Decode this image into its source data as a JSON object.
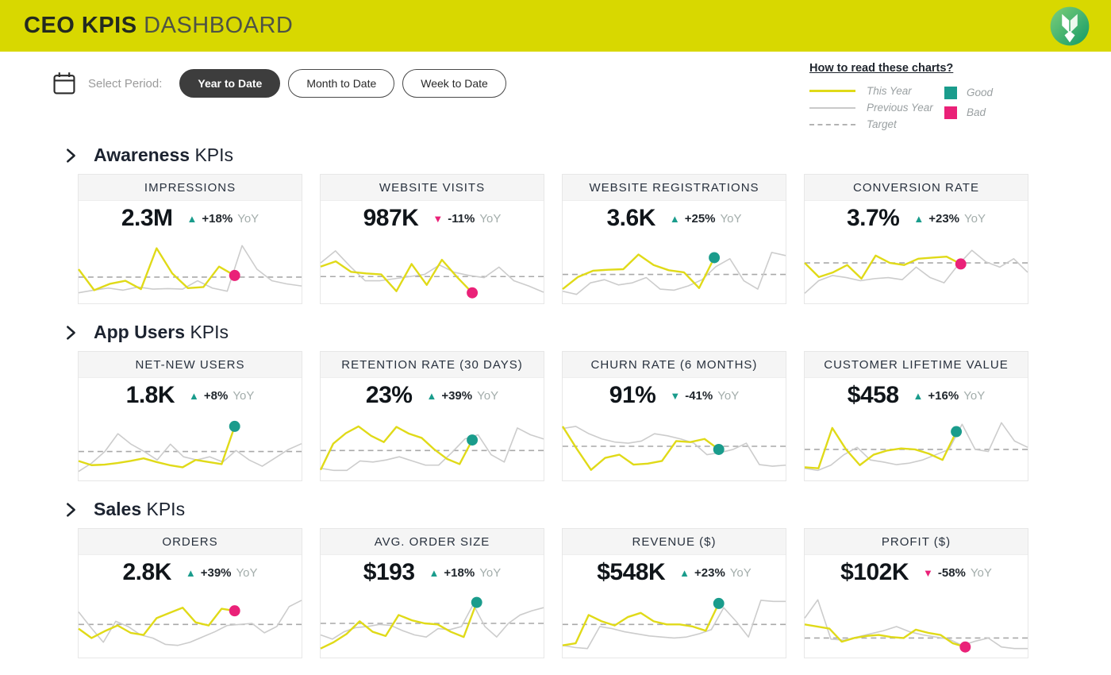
{
  "header": {
    "title_bold": "CEO KPIS",
    "title_light": "DASHBOARD"
  },
  "controls": {
    "label": "Select Period:",
    "periods": [
      {
        "label": "Year to Date",
        "selected": true
      },
      {
        "label": "Month to Date",
        "selected": false
      },
      {
        "label": "Week to Date",
        "selected": false
      }
    ]
  },
  "legend": {
    "title": "How to read these charts?",
    "series": [
      {
        "label": "This Year"
      },
      {
        "label": "Previous Year"
      },
      {
        "label": "Target"
      }
    ],
    "status": [
      {
        "label": "Good"
      },
      {
        "label": "Bad"
      }
    ]
  },
  "colors": {
    "header_bg": "#d8d800",
    "this_year_line": "#e0da18",
    "prev_year_line": "#cccccc",
    "target_line": "#a9a9a9",
    "good": "#1a9c8c",
    "bad": "#ea2178"
  },
  "sections": [
    {
      "title_bold": "Awareness",
      "title_rest": "KPIs",
      "cards": [
        {
          "title": "IMPRESSIONS",
          "value": "2.3M",
          "delta": "+18%",
          "yoy": "YoY",
          "trend": "up",
          "trend_color": "good",
          "dot": "bad",
          "target": 35,
          "x_end": 0.7,
          "this_year": [
            50,
            10,
            22,
            28,
            12,
            90,
            42,
            14,
            16,
            55,
            38
          ],
          "prev_year": [
            5,
            10,
            14,
            10,
            16,
            12,
            13,
            12,
            28,
            14,
            8,
            95,
            50,
            28,
            22,
            18
          ]
        },
        {
          "title": "WEBSITE VISITS",
          "value": "987K",
          "delta": "-11%",
          "yoy": "YoY",
          "trend": "down",
          "trend_color": "bad",
          "dot": "bad",
          "target": 36,
          "x_end": 0.68,
          "this_year": [
            55,
            65,
            45,
            42,
            40,
            8,
            60,
            20,
            68,
            35,
            5
          ],
          "prev_year": [
            62,
            85,
            55,
            28,
            28,
            32,
            36,
            40,
            58,
            44,
            38,
            34,
            54,
            28,
            18,
            6
          ]
        },
        {
          "title": "WEBSITE REGISTRATIONS",
          "value": "3.6K",
          "delta": "+25%",
          "yoy": "YoY",
          "trend": "up",
          "trend_color": "good",
          "dot": "good",
          "target": 40,
          "x_end": 0.68,
          "this_year": [
            12,
            35,
            47,
            49,
            50,
            78,
            58,
            48,
            44,
            14,
            72
          ],
          "prev_year": [
            8,
            2,
            24,
            30,
            20,
            24,
            34,
            12,
            10,
            18,
            30,
            55,
            70,
            28,
            12,
            82,
            76
          ]
        },
        {
          "title": "CONVERSION RATE",
          "value": "3.7%",
          "delta": "+23%",
          "yoy": "YoY",
          "trend": "up",
          "trend_color": "good",
          "dot": "bad",
          "target": 62,
          "x_end": 0.7,
          "this_year": [
            62,
            35,
            44,
            58,
            32,
            76,
            62,
            58,
            70,
            72,
            74,
            60
          ],
          "prev_year": [
            4,
            28,
            38,
            34,
            28,
            32,
            34,
            30,
            54,
            34,
            24,
            58,
            86,
            64,
            54,
            70,
            44
          ]
        }
      ]
    },
    {
      "title_bold": "App Users",
      "title_rest": "KPIs",
      "cards": [
        {
          "title": "NET-NEW USERS",
          "value": "1.8K",
          "delta": "+8%",
          "yoy": "YoY",
          "trend": "up",
          "trend_color": "good",
          "dot": "good",
          "target": 40,
          "x_end": 0.7,
          "this_year": [
            22,
            14,
            15,
            18,
            22,
            27,
            20,
            14,
            10,
            24,
            20,
            16,
            88
          ],
          "prev_year": [
            2,
            18,
            40,
            74,
            54,
            40,
            24,
            54,
            30,
            24,
            30,
            20,
            42,
            24,
            12,
            28,
            44,
            55
          ]
        },
        {
          "title": "RETENTION RATE (30 DAYS)",
          "value": "23%",
          "delta": "+39%",
          "yoy": "YoY",
          "trend": "up",
          "trend_color": "good",
          "dot": "good",
          "target": 42,
          "x_end": 0.68,
          "this_year": [
            5,
            55,
            75,
            88,
            70,
            58,
            87,
            74,
            66,
            44,
            26,
            16,
            62
          ],
          "prev_year": [
            8,
            4,
            4,
            22,
            20,
            24,
            30,
            22,
            14,
            14,
            38,
            64,
            72,
            34,
            20,
            85,
            72,
            64
          ]
        },
        {
          "title": "CHURN RATE (6 MONTHS)",
          "value": "91%",
          "delta": "-41%",
          "yoy": "YoY",
          "trend": "down",
          "trend_color": "good",
          "dot": "good",
          "target": 50,
          "x_end": 0.7,
          "this_year": [
            88,
            45,
            5,
            28,
            34,
            15,
            17,
            22,
            60,
            58,
            64,
            44
          ],
          "prev_year": [
            84,
            88,
            74,
            64,
            58,
            56,
            60,
            74,
            70,
            64,
            56,
            34,
            38,
            44,
            56,
            15,
            12,
            14
          ]
        },
        {
          "title": "CUSTOMER LIFETIME VALUE",
          "value": "$458",
          "delta": "+16%",
          "yoy": "YoY",
          "trend": "up",
          "trend_color": "good",
          "dot": "good",
          "target": 44,
          "x_end": 0.68,
          "this_year": [
            10,
            8,
            85,
            44,
            14,
            34,
            42,
            46,
            44,
            36,
            24,
            78
          ],
          "prev_year": [
            8,
            4,
            14,
            34,
            48,
            24,
            20,
            15,
            18,
            24,
            34,
            44,
            92,
            44,
            40,
            95,
            60,
            48
          ]
        }
      ]
    },
    {
      "title_bold": "Sales",
      "title_rest": "KPIs",
      "cards": [
        {
          "title": "ORDERS",
          "value": "2.8K",
          "delta": "+39%",
          "yoy": "YoY",
          "trend": "up",
          "trend_color": "good",
          "dot": "bad",
          "target": 48,
          "x_end": 0.7,
          "this_year": [
            40,
            22,
            35,
            46,
            32,
            28,
            60,
            70,
            80,
            52,
            46,
            78,
            74
          ],
          "prev_year": [
            72,
            42,
            14,
            54,
            44,
            28,
            22,
            10,
            8,
            14,
            24,
            34,
            46,
            48,
            50,
            32,
            44,
            82,
            94
          ]
        },
        {
          "title": "AVG. ORDER SIZE",
          "value": "$193",
          "delta": "+18%",
          "yoy": "YoY",
          "trend": "up",
          "trend_color": "good",
          "dot": "good",
          "target": 50,
          "x_end": 0.7,
          "this_year": [
            2,
            14,
            30,
            54,
            34,
            26,
            66,
            56,
            50,
            48,
            34,
            24,
            90
          ],
          "prev_year": [
            28,
            20,
            34,
            42,
            44,
            48,
            46,
            36,
            28,
            24,
            40,
            38,
            44,
            86,
            44,
            24,
            50,
            66,
            74,
            80
          ]
        },
        {
          "title": "REVENUE ($)",
          "value": "$548K",
          "delta": "+23%",
          "yoy": "YoY",
          "trend": "up",
          "trend_color": "good",
          "dot": "good",
          "target": 48,
          "x_end": 0.7,
          "this_year": [
            8,
            12,
            66,
            54,
            46,
            62,
            70,
            54,
            48,
            48,
            44,
            36,
            88
          ],
          "prev_year": [
            8,
            4,
            2,
            44,
            40,
            34,
            30,
            26,
            24,
            22,
            24,
            30,
            38,
            80,
            54,
            24,
            94,
            92,
            92
          ]
        },
        {
          "title": "PROFIT ($)",
          "value": "$102K",
          "delta": "-58%",
          "yoy": "YoY",
          "trend": "down",
          "trend_color": "bad",
          "dot": "bad",
          "target": 22,
          "x_end": 0.72,
          "this_year": [
            48,
            44,
            40,
            15,
            22,
            26,
            28,
            24,
            22,
            38,
            32,
            28,
            12,
            5
          ],
          "prev_year": [
            60,
            95,
            20,
            18,
            24,
            30,
            36,
            44,
            34,
            28,
            24,
            20,
            8,
            16,
            22,
            5,
            2,
            2
          ]
        }
      ]
    }
  ]
}
